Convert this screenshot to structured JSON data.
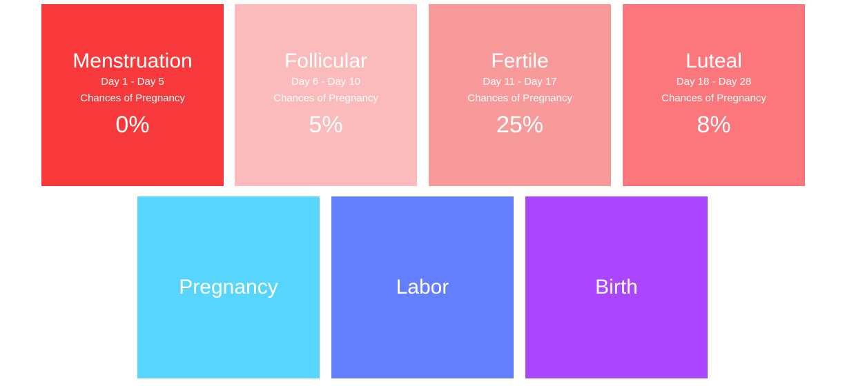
{
  "colors": {
    "menstruation": "#f8393b",
    "follicular": "#fbbabb",
    "fertile": "#f99a9a",
    "luteal": "#fb777b",
    "pregnancy": "#58d5fd",
    "labor": "#647ffe",
    "birth": "#a946fe",
    "text": "#ffffff"
  },
  "phases": [
    {
      "name": "Menstruation",
      "range": "Day 1 - Day 5",
      "chance_label": "Chances of Pregnancy",
      "chance": "0%"
    },
    {
      "name": "Follicular",
      "range": "Day 6 - Day 10",
      "chance_label": "Chances of Pregnancy",
      "chance": "5%"
    },
    {
      "name": "Fertile",
      "range": "Day 11 - Day 17",
      "chance_label": "Chances of Pregnancy",
      "chance": "25%"
    },
    {
      "name": "Luteal",
      "range": "Day 18 - Day 28",
      "chance_label": "Chances of Pregnancy",
      "chance": "8%"
    }
  ],
  "stages": [
    {
      "name": "Pregnancy"
    },
    {
      "name": "Labor"
    },
    {
      "name": "Birth"
    }
  ]
}
